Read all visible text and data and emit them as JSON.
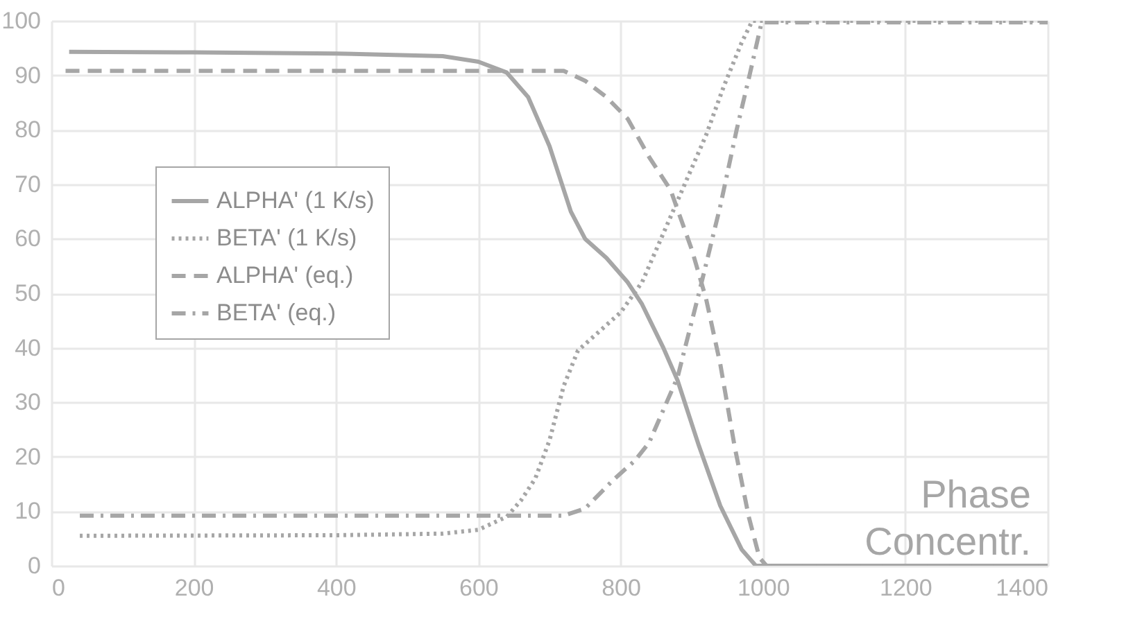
{
  "chart_data": {
    "type": "line",
    "xlim": [
      0,
      1400
    ],
    "xticks": [
      0,
      200,
      400,
      600,
      800,
      1000,
      1200,
      1400
    ],
    "ylim": [
      0,
      100
    ],
    "yticks": [
      0,
      10,
      20,
      30,
      40,
      50,
      60,
      70,
      80,
      90,
      100
    ],
    "grid": true,
    "legend": "left",
    "annotations": [
      "Phase Concentr."
    ],
    "series": [
      {
        "name": "ALPHA' (1 K/s)",
        "color": "#a6a6a6",
        "line_style": "solid",
        "x": [
          25,
          200,
          400,
          550,
          600,
          640,
          670,
          700,
          730,
          750,
          780,
          810,
          830,
          860,
          880,
          910,
          940,
          970,
          990,
          1400
        ],
        "values": [
          94.3,
          94.2,
          94,
          93.5,
          92.5,
          90.5,
          86,
          77,
          65,
          60,
          56.5,
          52,
          48,
          40,
          34,
          22,
          11,
          3,
          0,
          0
        ]
      },
      {
        "name": "BETA' (1 K/s)",
        "color": "#a6a6a6",
        "line_style": "dotted",
        "x": [
          40,
          400,
          550,
          600,
          640,
          660,
          680,
          700,
          720,
          740,
          770,
          800,
          830,
          860,
          890,
          920,
          945,
          970,
          985,
          1400
        ],
        "values": [
          5.5,
          5.6,
          5.9,
          6.6,
          9,
          12,
          16,
          23,
          33,
          39.5,
          43,
          46.5,
          52,
          61,
          70,
          79,
          88,
          96,
          100,
          100
        ]
      },
      {
        "name": "ALPHA' (eq.)",
        "color": "#a6a6a6",
        "line_style": "dashed",
        "x": [
          20,
          720,
          750,
          780,
          810,
          840,
          870,
          900,
          920,
          940,
          960,
          980,
          995,
          1005,
          1400
        ],
        "values": [
          90.8,
          90.8,
          89,
          86,
          82,
          75,
          69,
          58,
          49,
          37,
          22,
          9,
          1.5,
          0,
          0
        ]
      },
      {
        "name": "BETA' (eq.)",
        "color": "#a6a6a6",
        "line_style": "dashdot",
        "x": [
          40,
          720,
          750,
          790,
          820,
          840,
          880,
          910,
          940,
          963,
          982,
          998,
          1400
        ],
        "values": [
          9.2,
          9.2,
          10.5,
          15.8,
          19.3,
          22.6,
          34.6,
          50,
          66,
          80,
          90.5,
          99.7,
          99.7
        ]
      }
    ]
  }
}
